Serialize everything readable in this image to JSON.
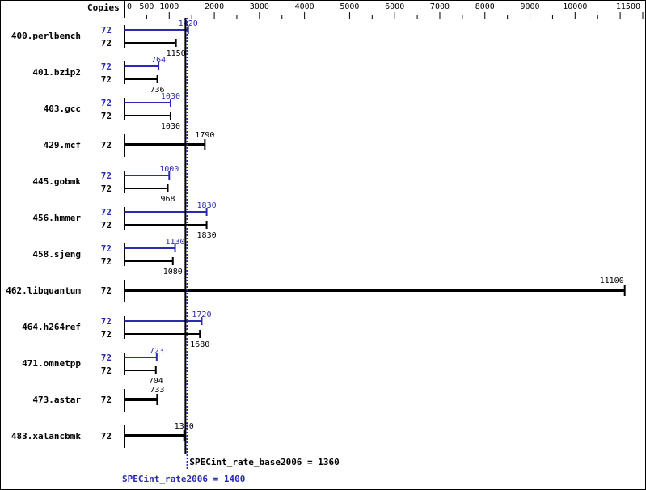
{
  "chart_data": {
    "type": "bar",
    "orientation": "horizontal",
    "copies_header": "Copies",
    "xlim": [
      0,
      11500
    ],
    "tick_labels": [
      "0",
      "500",
      "1000",
      "2000",
      "3000",
      "4000",
      "5000",
      "6000",
      "7000",
      "8000",
      "9000",
      "10000",
      "11500"
    ],
    "colors": {
      "peak": "#2b2bb0",
      "base": "#000000"
    },
    "benchmarks": [
      {
        "name": "400.perlbench",
        "peak_copies": "72",
        "peak": 1420,
        "base_copies": "72",
        "base": 1150
      },
      {
        "name": "401.bzip2",
        "peak_copies": "72",
        "peak": 764,
        "base_copies": "72",
        "base": 736
      },
      {
        "name": "403.gcc",
        "peak_copies": "72",
        "peak": 1030,
        "base_copies": "72",
        "base": 1030
      },
      {
        "name": "429.mcf",
        "peak_copies": null,
        "peak": null,
        "base_copies": "72",
        "base": 1790
      },
      {
        "name": "445.gobmk",
        "peak_copies": "72",
        "peak": 1000,
        "base_copies": "72",
        "base": 968
      },
      {
        "name": "456.hmmer",
        "peak_copies": "72",
        "peak": 1830,
        "base_copies": "72",
        "base": 1830
      },
      {
        "name": "458.sjeng",
        "peak_copies": "72",
        "peak": 1130,
        "base_copies": "72",
        "base": 1080
      },
      {
        "name": "462.libquantum",
        "peak_copies": null,
        "peak": null,
        "base_copies": "72",
        "base": 11100
      },
      {
        "name": "464.h264ref",
        "peak_copies": "72",
        "peak": 1720,
        "base_copies": "72",
        "base": 1680
      },
      {
        "name": "471.omnetpp",
        "peak_copies": "72",
        "peak": 723,
        "base_copies": "72",
        "base": 704
      },
      {
        "name": "473.astar",
        "peak_copies": null,
        "peak": null,
        "base_copies": "72",
        "base": 733
      },
      {
        "name": "483.xalancbmk",
        "peak_copies": null,
        "peak": null,
        "base_copies": "72",
        "base": 1330
      }
    ],
    "base_metric": {
      "label": "SPECint_rate_base2006 = 1360",
      "value": 1360
    },
    "peak_metric": {
      "label": "SPECint_rate2006 = 1400",
      "value": 1400
    }
  }
}
